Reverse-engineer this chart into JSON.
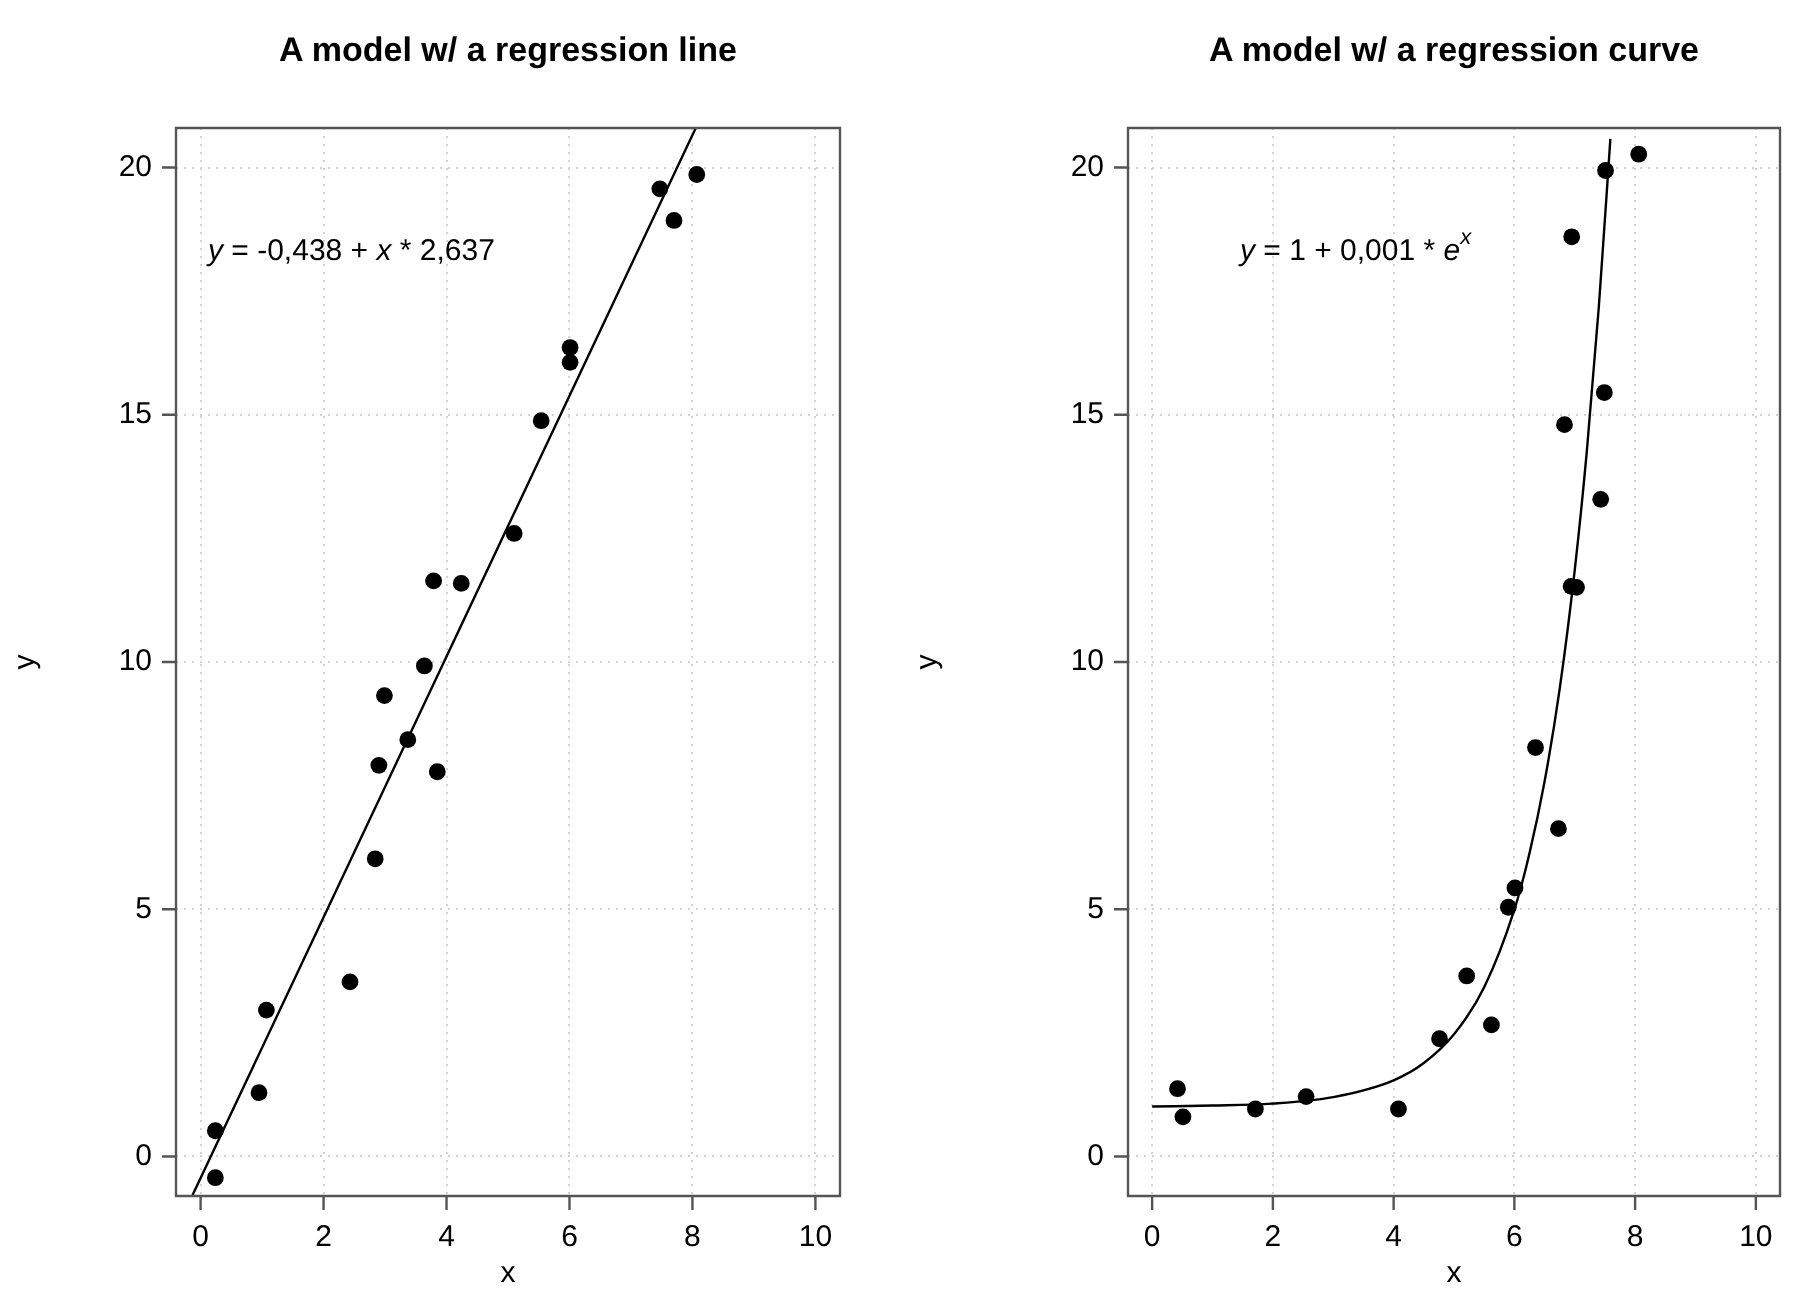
{
  "chart_data": [
    {
      "type": "scatter",
      "title": "A model w/ a regression line",
      "xlabel": "x",
      "ylabel": "y",
      "xlim": [
        -0.4,
        10.4
      ],
      "ylim": [
        -0.8,
        20.8
      ],
      "xticks": [
        0,
        2,
        4,
        6,
        8,
        10
      ],
      "yticks": [
        0,
        5,
        10,
        15,
        20
      ],
      "grid": true,
      "legend": false,
      "annotations": [
        "y = -0,438 + x * 2,637"
      ],
      "series": [
        {
          "type": "scatter",
          "color": "#000000",
          "marker": "circle",
          "x": [
            0.24,
            0.24,
            0.95,
            1.07,
            2.43,
            2.84,
            2.9,
            2.99,
            3.37,
            3.64,
            3.79,
            3.85,
            4.24,
            5.1,
            5.54,
            6.01,
            6.01,
            7.47,
            7.7,
            8.07
          ],
          "values": [
            -0.43,
            0.52,
            1.29,
            2.96,
            3.53,
            6.02,
            7.91,
            9.32,
            8.43,
            9.92,
            11.64,
            7.78,
            11.59,
            12.6,
            14.88,
            16.36,
            16.06,
            19.57,
            18.93,
            19.86
          ]
        },
        {
          "type": "line",
          "color": "#000000",
          "marker": "none",
          "line_style": "solid",
          "x": [
            -0.13,
            8.05
          ],
          "values": [
            -0.78,
            20.79
          ]
        }
      ]
    },
    {
      "type": "scatter",
      "title": "A model w/ a regression curve",
      "xlabel": "x",
      "ylabel": "y",
      "xlim": [
        -0.4,
        10.4
      ],
      "ylim": [
        -0.8,
        20.8
      ],
      "xticks": [
        0,
        2,
        4,
        6,
        8,
        10
      ],
      "yticks": [
        0,
        5,
        10,
        15,
        20
      ],
      "grid": true,
      "legend": false,
      "annotations": [
        "y = 1 + 0,001 * e$^{x}$"
      ],
      "series": [
        {
          "type": "scatter",
          "color": "#000000",
          "marker": "circle",
          "x": [
            0.42,
            0.51,
            1.71,
            2.55,
            4.08,
            4.76,
            5.21,
            5.62,
            5.9,
            6.01,
            6.35,
            6.73,
            6.83,
            6.94,
            7.03,
            6.95,
            7.43,
            7.49,
            7.51,
            8.06
          ],
          "values": [
            1.37,
            0.8,
            0.96,
            1.21,
            0.96,
            2.38,
            3.65,
            2.66,
            5.04,
            5.43,
            8.27,
            6.63,
            14.8,
            11.53,
            11.51,
            18.6,
            13.29,
            15.45,
            19.94,
            20.27
          ]
        },
        {
          "type": "line",
          "color": "#000000",
          "marker": "none",
          "line_style": "solid",
          "x": [
            0,
            1,
            2,
            3,
            4,
            4.5,
            5,
            5.5,
            6,
            6.25,
            6.5,
            6.75,
            7,
            7.2,
            7.4,
            7.59
          ],
          "values": [
            1.01,
            1.03,
            1.07,
            1.2,
            1.54,
            1.89,
            2.47,
            3.42,
            4.99,
            6.13,
            7.58,
            9.45,
            11.86,
            14.26,
            17.2,
            20.58
          ]
        }
      ]
    }
  ]
}
